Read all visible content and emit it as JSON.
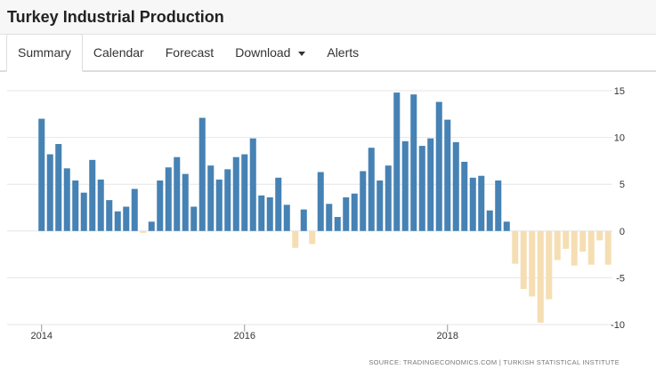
{
  "page": {
    "title": "Turkey Industrial Production"
  },
  "tabs": [
    {
      "label": "Summary",
      "active": true
    },
    {
      "label": "Calendar"
    },
    {
      "label": "Forecast"
    },
    {
      "label": "Download",
      "dropdown": true
    },
    {
      "label": "Alerts"
    }
  ],
  "colors": {
    "positive": "#4682b4",
    "negative": "#f5deb3",
    "grid": "#e6e6e6",
    "axis_text": "#333333"
  },
  "chart_data": {
    "type": "bar",
    "start": "2014-01",
    "frequency": "monthly",
    "values": [
      12.0,
      8.2,
      9.3,
      6.7,
      5.4,
      4.1,
      7.6,
      5.5,
      3.3,
      2.1,
      2.6,
      4.5,
      -0.2,
      1.0,
      5.4,
      6.8,
      7.9,
      6.1,
      2.6,
      12.1,
      7.0,
      5.5,
      6.6,
      7.9,
      8.2,
      9.9,
      3.8,
      3.6,
      5.7,
      2.8,
      -1.8,
      2.3,
      -1.4,
      6.3,
      2.9,
      1.5,
      3.6,
      4.0,
      6.4,
      8.9,
      5.4,
      7.0,
      14.8,
      9.6,
      14.6,
      9.1,
      9.9,
      13.8,
      11.9,
      9.5,
      7.4,
      5.7,
      5.9,
      2.2,
      5.4,
      1.0,
      -3.5,
      -6.2,
      -7.0,
      -9.8,
      -7.3,
      -3.1,
      -1.9,
      -3.7,
      -2.2,
      -3.6,
      -1.0,
      -3.6
    ],
    "x_ticks": [
      "2014",
      "2016",
      "2018"
    ],
    "ylim": [
      -10,
      15
    ],
    "y_ticks": [
      15,
      10,
      5,
      0,
      -5,
      -10
    ],
    "y_axis_position": "right",
    "grid": true,
    "source": "SOURCE: TRADINGECONOMICS.COM | TURKISH STATISTICAL INSTITUTE"
  }
}
